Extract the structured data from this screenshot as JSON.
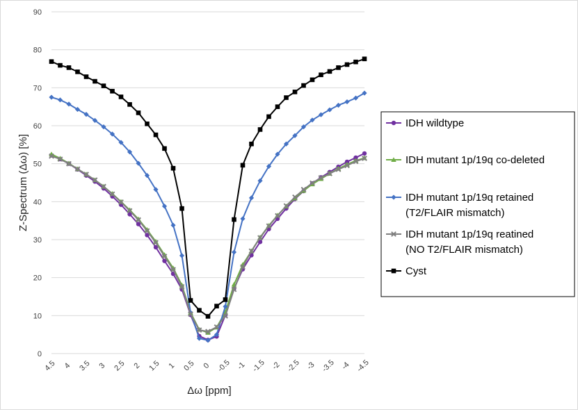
{
  "chart_data": {
    "type": "line",
    "title": "",
    "xlabel": "Δω [ppm]",
    "ylabel": "Z-Spectrum (Δω) [%]",
    "ylim": [
      0,
      90
    ],
    "y_ticks": [
      0,
      10,
      20,
      30,
      40,
      50,
      60,
      70,
      80,
      90
    ],
    "x_ticks": [
      4.5,
      4,
      3.5,
      3,
      2.5,
      2,
      1.5,
      1,
      0.5,
      0,
      -0.5,
      -1,
      -1.5,
      -2,
      -2.5,
      -3,
      -3.5,
      -4,
      -4.5
    ],
    "x_tick_labels": [
      "4.5",
      "4",
      "3.5",
      "3",
      "2.5",
      "2",
      "1.5",
      "1",
      "0.5",
      "0",
      "-0.5",
      "-1",
      "-1.5",
      "-2",
      "-2.5",
      "-3",
      "-3.5",
      "-4",
      "-4.5"
    ],
    "xlim": [
      4.5,
      -4.5
    ],
    "grid": "horizontal",
    "legend_position": "right",
    "x": [
      4.5,
      4.25,
      4.0,
      3.75,
      3.5,
      3.25,
      3.0,
      2.75,
      2.5,
      2.25,
      2.0,
      1.75,
      1.5,
      1.25,
      1.0,
      0.75,
      0.5,
      0.25,
      0.0,
      -0.25,
      -0.5,
      -0.75,
      -1.0,
      -1.25,
      -1.5,
      -1.75,
      -2.0,
      -2.25,
      -2.5,
      -2.75,
      -3.0,
      -3.25,
      -3.5,
      -3.75,
      -4.0,
      -4.25,
      -4.5
    ],
    "series": [
      {
        "name": "IDH wildtype",
        "color": "#7030a0",
        "marker": "circle",
        "values": [
          52.2,
          51.2,
          50.0,
          48.5,
          46.9,
          45.3,
          43.5,
          41.4,
          39.2,
          36.7,
          34.1,
          31.2,
          28.0,
          24.4,
          21.0,
          16.9,
          10.2,
          4.6,
          3.6,
          4.5,
          10.1,
          17.1,
          22.2,
          25.9,
          29.4,
          32.8,
          35.5,
          38.2,
          40.7,
          42.8,
          44.8,
          46.4,
          47.8,
          49.2,
          50.5,
          51.6,
          52.7
        ]
      },
      {
        "name": "IDH mutant 1p/19q co-deleted",
        "color": "#70ad47",
        "marker": "triangle",
        "values": [
          52.5,
          51.4,
          50.1,
          48.6,
          47.2,
          45.7,
          44.0,
          42.1,
          40.0,
          37.8,
          35.4,
          32.6,
          29.5,
          26.0,
          22.5,
          18.0,
          10.8,
          6.3,
          5.5,
          6.9,
          10.9,
          18.2,
          23.4,
          27.0,
          30.6,
          33.7,
          36.4,
          38.8,
          40.9,
          42.9,
          44.6,
          46.0,
          47.4,
          48.7,
          49.8,
          50.8,
          51.5
        ]
      },
      {
        "name": "IDH mutant 1p/19q retained (T2/FLAIR mismatch)",
        "color": "#4472c4",
        "marker": "diamond",
        "values": [
          67.5,
          66.8,
          65.7,
          64.3,
          63.0,
          61.4,
          59.7,
          57.8,
          55.6,
          53.1,
          50.1,
          46.9,
          43.2,
          38.8,
          33.8,
          25.8,
          10.8,
          4.0,
          3.5,
          5.0,
          12.4,
          26.7,
          35.5,
          41.0,
          45.5,
          49.3,
          52.5,
          55.2,
          57.4,
          59.7,
          61.5,
          62.9,
          64.2,
          65.4,
          66.3,
          67.3,
          68.6
        ]
      },
      {
        "name": "IDH mutant 1p/19q reatined (NO T2/FLAIR mismatch)",
        "color": "#7f7f7f",
        "marker": "x",
        "values": [
          52.0,
          51.2,
          50.0,
          48.6,
          47.2,
          45.7,
          44.0,
          42.0,
          39.9,
          37.6,
          35.2,
          32.3,
          29.2,
          25.6,
          22.1,
          17.6,
          10.4,
          6.2,
          5.8,
          7.0,
          9.9,
          16.9,
          22.8,
          27.0,
          30.5,
          33.6,
          36.3,
          38.9,
          41.2,
          43.2,
          44.9,
          46.3,
          47.4,
          48.5,
          49.5,
          50.6,
          51.4
        ]
      },
      {
        "name": "Cyst",
        "color": "#000000",
        "marker": "square",
        "values": [
          76.9,
          75.9,
          75.3,
          74.2,
          72.9,
          71.7,
          70.5,
          69.1,
          67.6,
          65.6,
          63.4,
          60.5,
          57.6,
          54.0,
          48.8,
          38.2,
          14.0,
          11.4,
          9.8,
          12.5,
          14.2,
          35.3,
          49.6,
          55.2,
          59.0,
          62.4,
          65.0,
          67.4,
          68.9,
          70.6,
          72.1,
          73.4,
          74.3,
          75.3,
          76.1,
          76.8,
          77.6
        ]
      }
    ],
    "legend_lines": [
      [
        "IDH wildtype"
      ],
      [
        "IDH mutant 1p/19q co-deleted"
      ],
      [
        "IDH mutant 1p/19q retained",
        "(T2/FLAIR mismatch)"
      ],
      [
        "IDH mutant 1p/19q reatined",
        "(NO T2/FLAIR mismatch)"
      ],
      [
        "Cyst"
      ]
    ]
  }
}
